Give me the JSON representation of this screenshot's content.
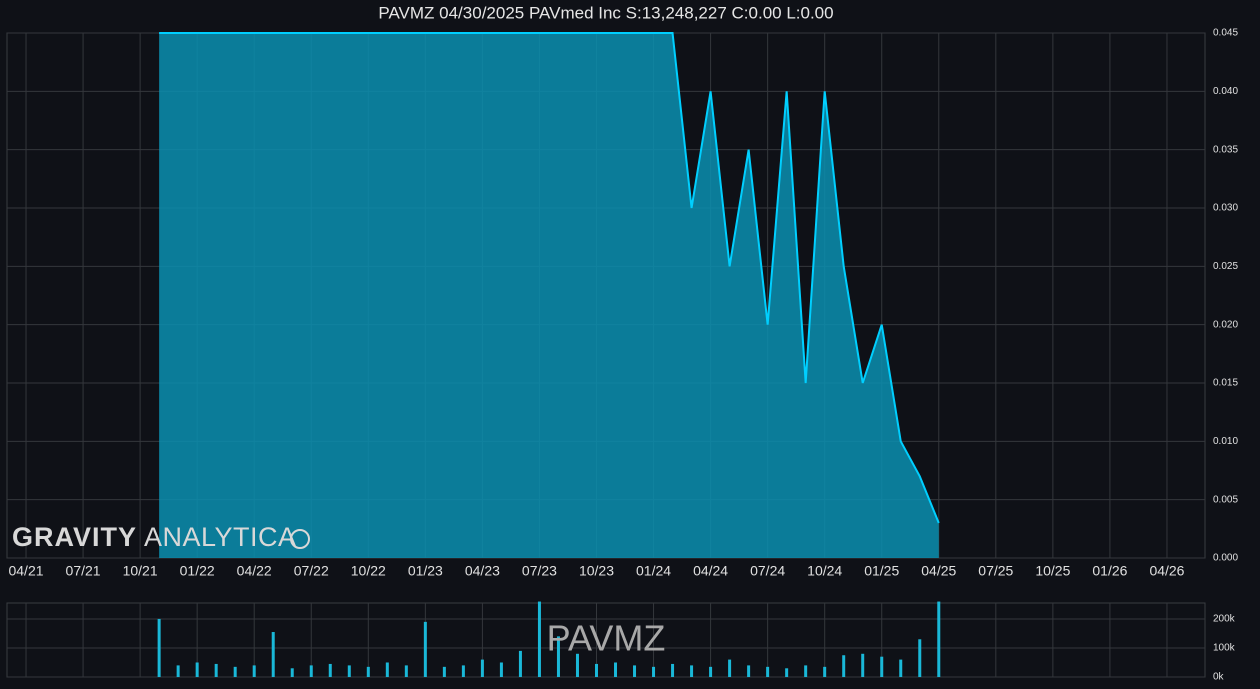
{
  "logo": {
    "bold": "GRAVITY",
    "light": "ANALYTICA"
  },
  "chart_data": [
    {
      "type": "area",
      "title": "PAVMZ 04/30/2025 PAVmed Inc S:13,248,227 C:0.00 L:0.00",
      "x": [
        "2021-11",
        "2021-12",
        "2022-01",
        "2022-02",
        "2022-03",
        "2022-04",
        "2022-05",
        "2022-06",
        "2022-07",
        "2022-08",
        "2022-09",
        "2022-10",
        "2022-11",
        "2022-12",
        "2023-01",
        "2023-02",
        "2023-03",
        "2023-04",
        "2023-05",
        "2023-06",
        "2023-07",
        "2023-08",
        "2023-09",
        "2023-10",
        "2023-11",
        "2023-12",
        "2024-01",
        "2024-02",
        "2024-03",
        "2024-04",
        "2024-05",
        "2024-06",
        "2024-07",
        "2024-08",
        "2024-09",
        "2024-10",
        "2024-11",
        "2024-12",
        "2025-01",
        "2025-02",
        "2025-03",
        "2025-04"
      ],
      "values": [
        0.045,
        0.045,
        0.045,
        0.045,
        0.045,
        0.045,
        0.045,
        0.045,
        0.045,
        0.045,
        0.045,
        0.045,
        0.045,
        0.045,
        0.045,
        0.045,
        0.045,
        0.045,
        0.045,
        0.045,
        0.045,
        0.045,
        0.045,
        0.045,
        0.045,
        0.045,
        0.045,
        0.045,
        0.03,
        0.04,
        0.025,
        0.035,
        0.02,
        0.04,
        0.015,
        0.04,
        0.025,
        0.015,
        0.02,
        0.01,
        0.007,
        0.003
      ],
      "color": "#00cfff",
      "xlim": [
        "2021-03",
        "2026-06"
      ],
      "xticks": [
        {
          "value": "2021-04",
          "label": "04/21"
        },
        {
          "value": "2021-07",
          "label": "07/21"
        },
        {
          "value": "2021-10",
          "label": "10/21"
        },
        {
          "value": "2022-01",
          "label": "01/22"
        },
        {
          "value": "2022-04",
          "label": "04/22"
        },
        {
          "value": "2022-07",
          "label": "07/22"
        },
        {
          "value": "2022-10",
          "label": "10/22"
        },
        {
          "value": "2023-01",
          "label": "01/23"
        },
        {
          "value": "2023-04",
          "label": "04/23"
        },
        {
          "value": "2023-07",
          "label": "07/23"
        },
        {
          "value": "2023-10",
          "label": "10/23"
        },
        {
          "value": "2024-01",
          "label": "01/24"
        },
        {
          "value": "2024-04",
          "label": "04/24"
        },
        {
          "value": "2024-07",
          "label": "07/24"
        },
        {
          "value": "2024-10",
          "label": "10/24"
        },
        {
          "value": "2025-01",
          "label": "01/25"
        },
        {
          "value": "2025-04",
          "label": "04/25"
        },
        {
          "value": "2025-07",
          "label": "07/25"
        },
        {
          "value": "2025-10",
          "label": "10/25"
        },
        {
          "value": "2026-01",
          "label": "01/26"
        },
        {
          "value": "2026-04",
          "label": "04/26"
        }
      ],
      "ylim": [
        0,
        0.045
      ],
      "yticks": [
        {
          "value": 0,
          "label": "0.000"
        },
        {
          "value": 0.005,
          "label": "0.005"
        },
        {
          "value": 0.01,
          "label": "0.010"
        },
        {
          "value": 0.015,
          "label": "0.015"
        },
        {
          "value": 0.02,
          "label": "0.020"
        },
        {
          "value": 0.025,
          "label": "0.025"
        },
        {
          "value": 0.03,
          "label": "0.030"
        },
        {
          "value": 0.035,
          "label": "0.035"
        },
        {
          "value": 0.04,
          "label": "0.040"
        },
        {
          "value": 0.045,
          "label": "0.045"
        }
      ],
      "grid": true
    },
    {
      "type": "bar",
      "annotation": "PAVMZ",
      "x": [
        "2021-11",
        "2021-12",
        "2022-01",
        "2022-02",
        "2022-03",
        "2022-04",
        "2022-05",
        "2022-06",
        "2022-07",
        "2022-08",
        "2022-09",
        "2022-10",
        "2022-11",
        "2022-12",
        "2023-01",
        "2023-02",
        "2023-03",
        "2023-04",
        "2023-05",
        "2023-06",
        "2023-07",
        "2023-08",
        "2023-09",
        "2023-10",
        "2023-11",
        "2023-12",
        "2024-01",
        "2024-02",
        "2024-03",
        "2024-04",
        "2024-05",
        "2024-06",
        "2024-07",
        "2024-08",
        "2024-09",
        "2024-10",
        "2024-11",
        "2024-12",
        "2025-01",
        "2025-02",
        "2025-03",
        "2025-04"
      ],
      "values": [
        200000,
        40000,
        50000,
        45000,
        35000,
        40000,
        155000,
        30000,
        40000,
        45000,
        40000,
        35000,
        50000,
        40000,
        190000,
        35000,
        40000,
        60000,
        50000,
        90000,
        260000,
        140000,
        80000,
        45000,
        50000,
        40000,
        35000,
        45000,
        40000,
        35000,
        60000,
        40000,
        35000,
        30000,
        40000,
        35000,
        75000,
        80000,
        70000,
        60000,
        130000,
        260000
      ],
      "color": "#1ab8d8",
      "xlim": [
        "2021-03",
        "2026-06"
      ],
      "ylim": [
        0,
        255000
      ],
      "yticks": [
        {
          "value": 0,
          "label": "0k"
        },
        {
          "value": 100000,
          "label": "100k"
        },
        {
          "value": 200000,
          "label": "200k"
        }
      ],
      "grid": true
    }
  ]
}
